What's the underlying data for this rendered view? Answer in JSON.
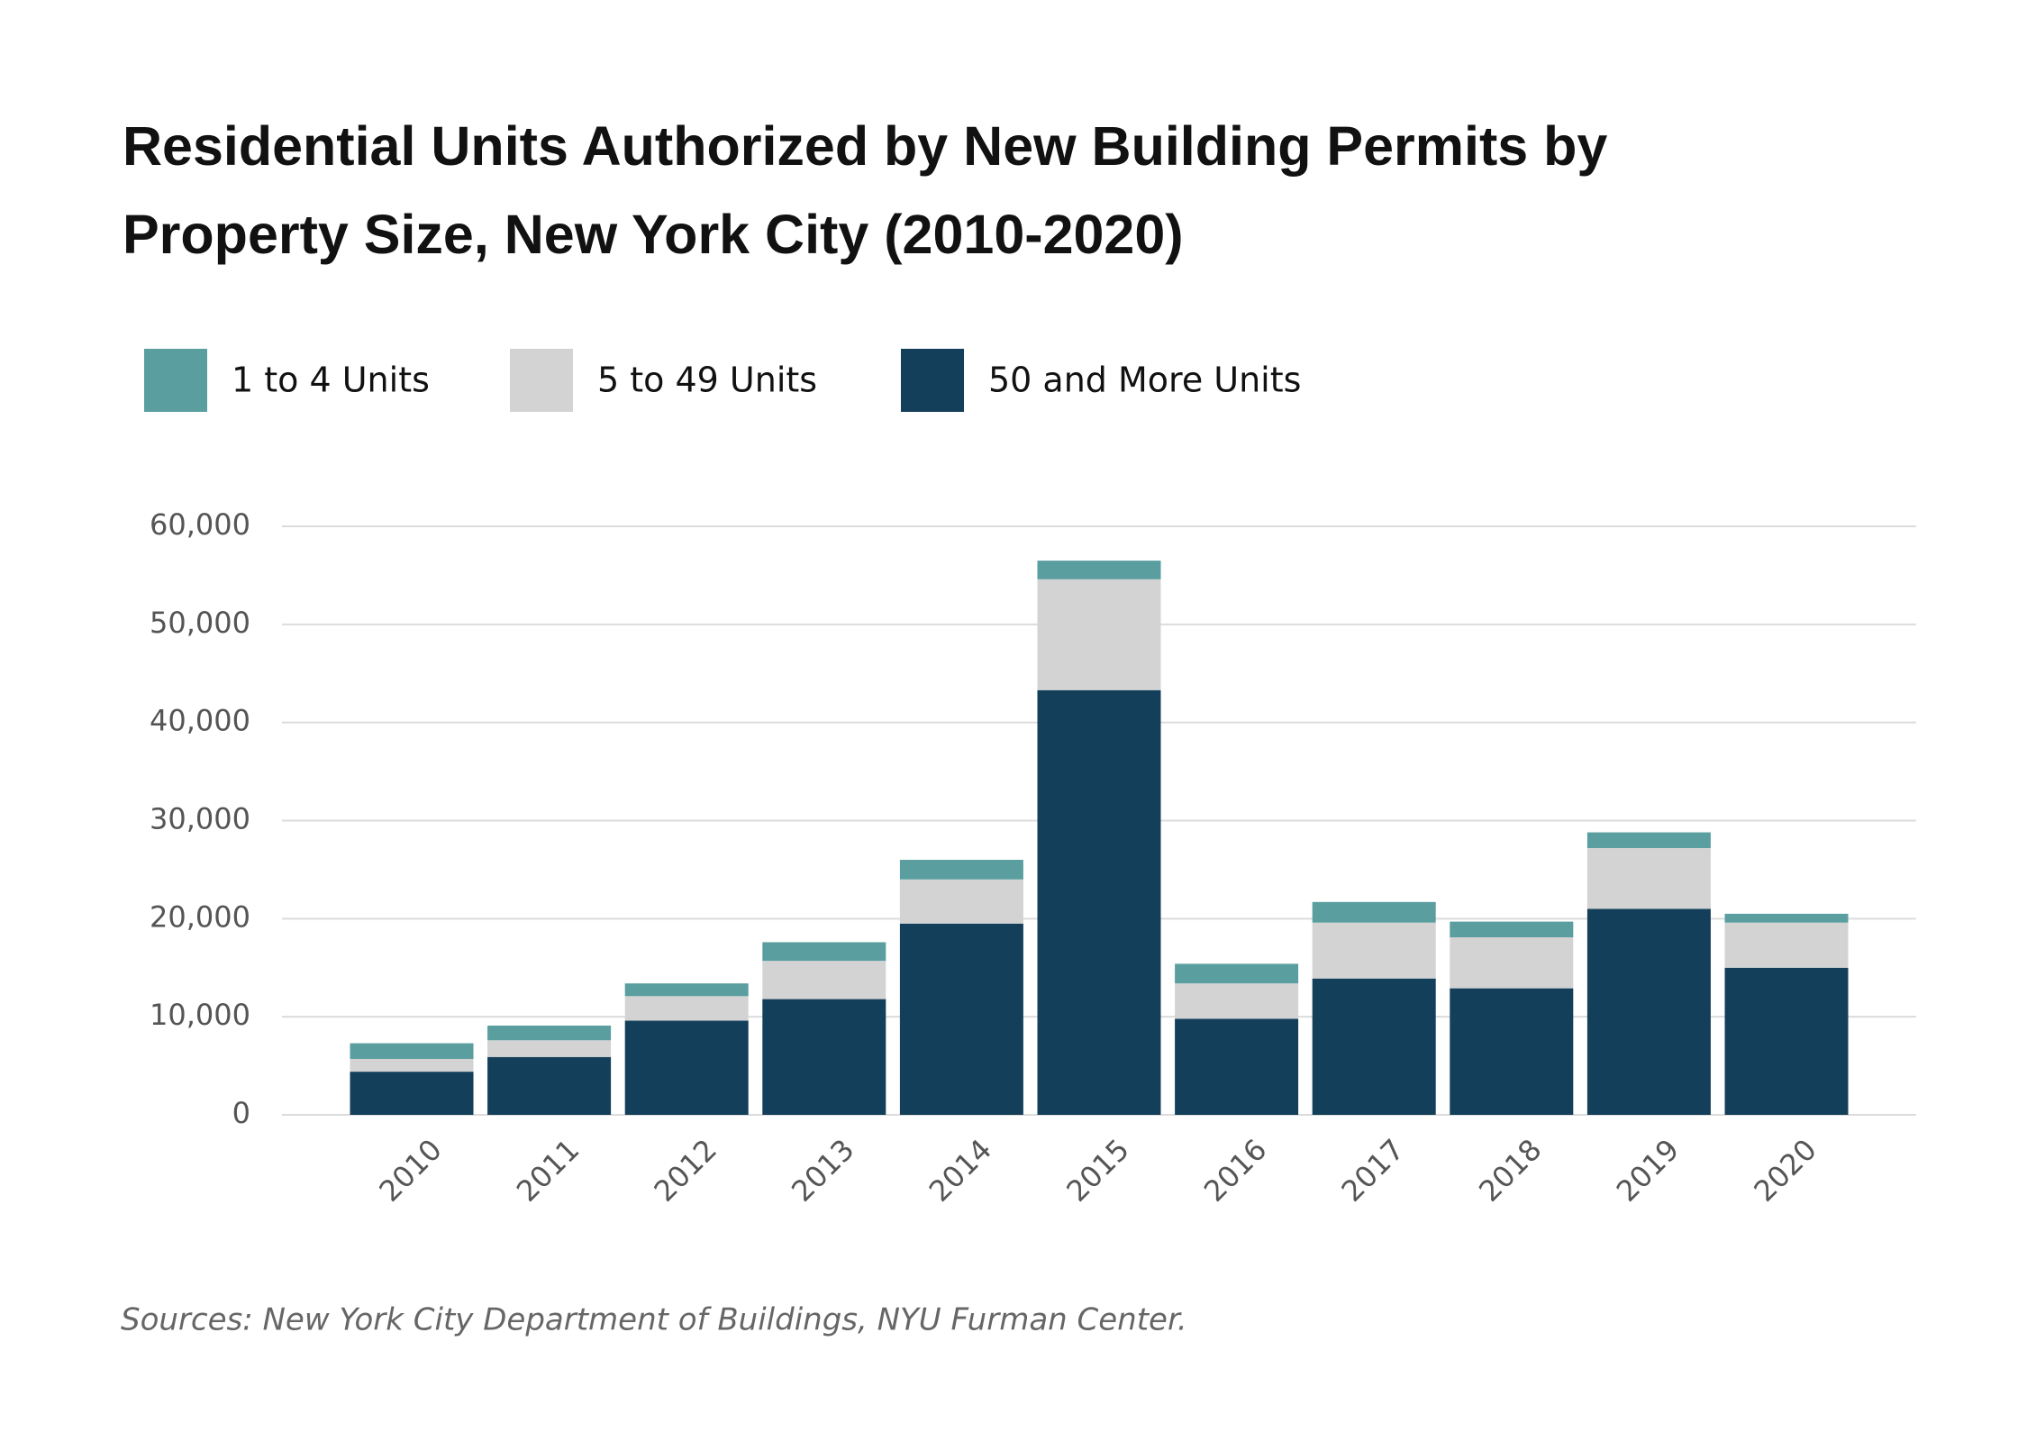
{
  "chart_data": {
    "type": "stacked_bar",
    "title": [
      "Residential Units Authorized by New Building Permits by",
      "Property Size, New York City (2010-2020)"
    ],
    "categories": [
      "2010",
      "2011",
      "2012",
      "2013",
      "2014",
      "2015",
      "2016",
      "2017",
      "2018",
      "2019",
      "2020"
    ],
    "series": [
      {
        "name": "1 to 4 Units",
        "color": "#5a9ea0",
        "values": [
          1600,
          1500,
          1300,
          1900,
          2000,
          1900,
          2000,
          2100,
          1600,
          1600,
          900
        ]
      },
      {
        "name": "5 to 49 Units",
        "color": "#d3d3d3",
        "values": [
          1300,
          1700,
          2500,
          3900,
          4500,
          11300,
          3600,
          5700,
          5200,
          6200,
          4600
        ]
      },
      {
        "name": "50 and More Units",
        "color": "#143f5a",
        "values": [
          4400,
          5900,
          9600,
          11800,
          19500,
          43300,
          9800,
          13900,
          12900,
          21000,
          15000
        ]
      }
    ],
    "ylim": [
      0,
      60000
    ],
    "yticks": [
      0,
      {
        "value": 10000,
        "label": "10,000"
      },
      {
        "value": 20000,
        "label": "20,000"
      },
      {
        "value": 30000,
        "label": "30,000"
      },
      {
        "value": 40000,
        "label": "40,000"
      },
      {
        "value": 50000,
        "label": "50,000"
      },
      {
        "value": 60000,
        "label": "60,000"
      }
    ],
    "grid": true,
    "source": "Sources: New York City Department of Buildings, NYU Furman Center."
  }
}
